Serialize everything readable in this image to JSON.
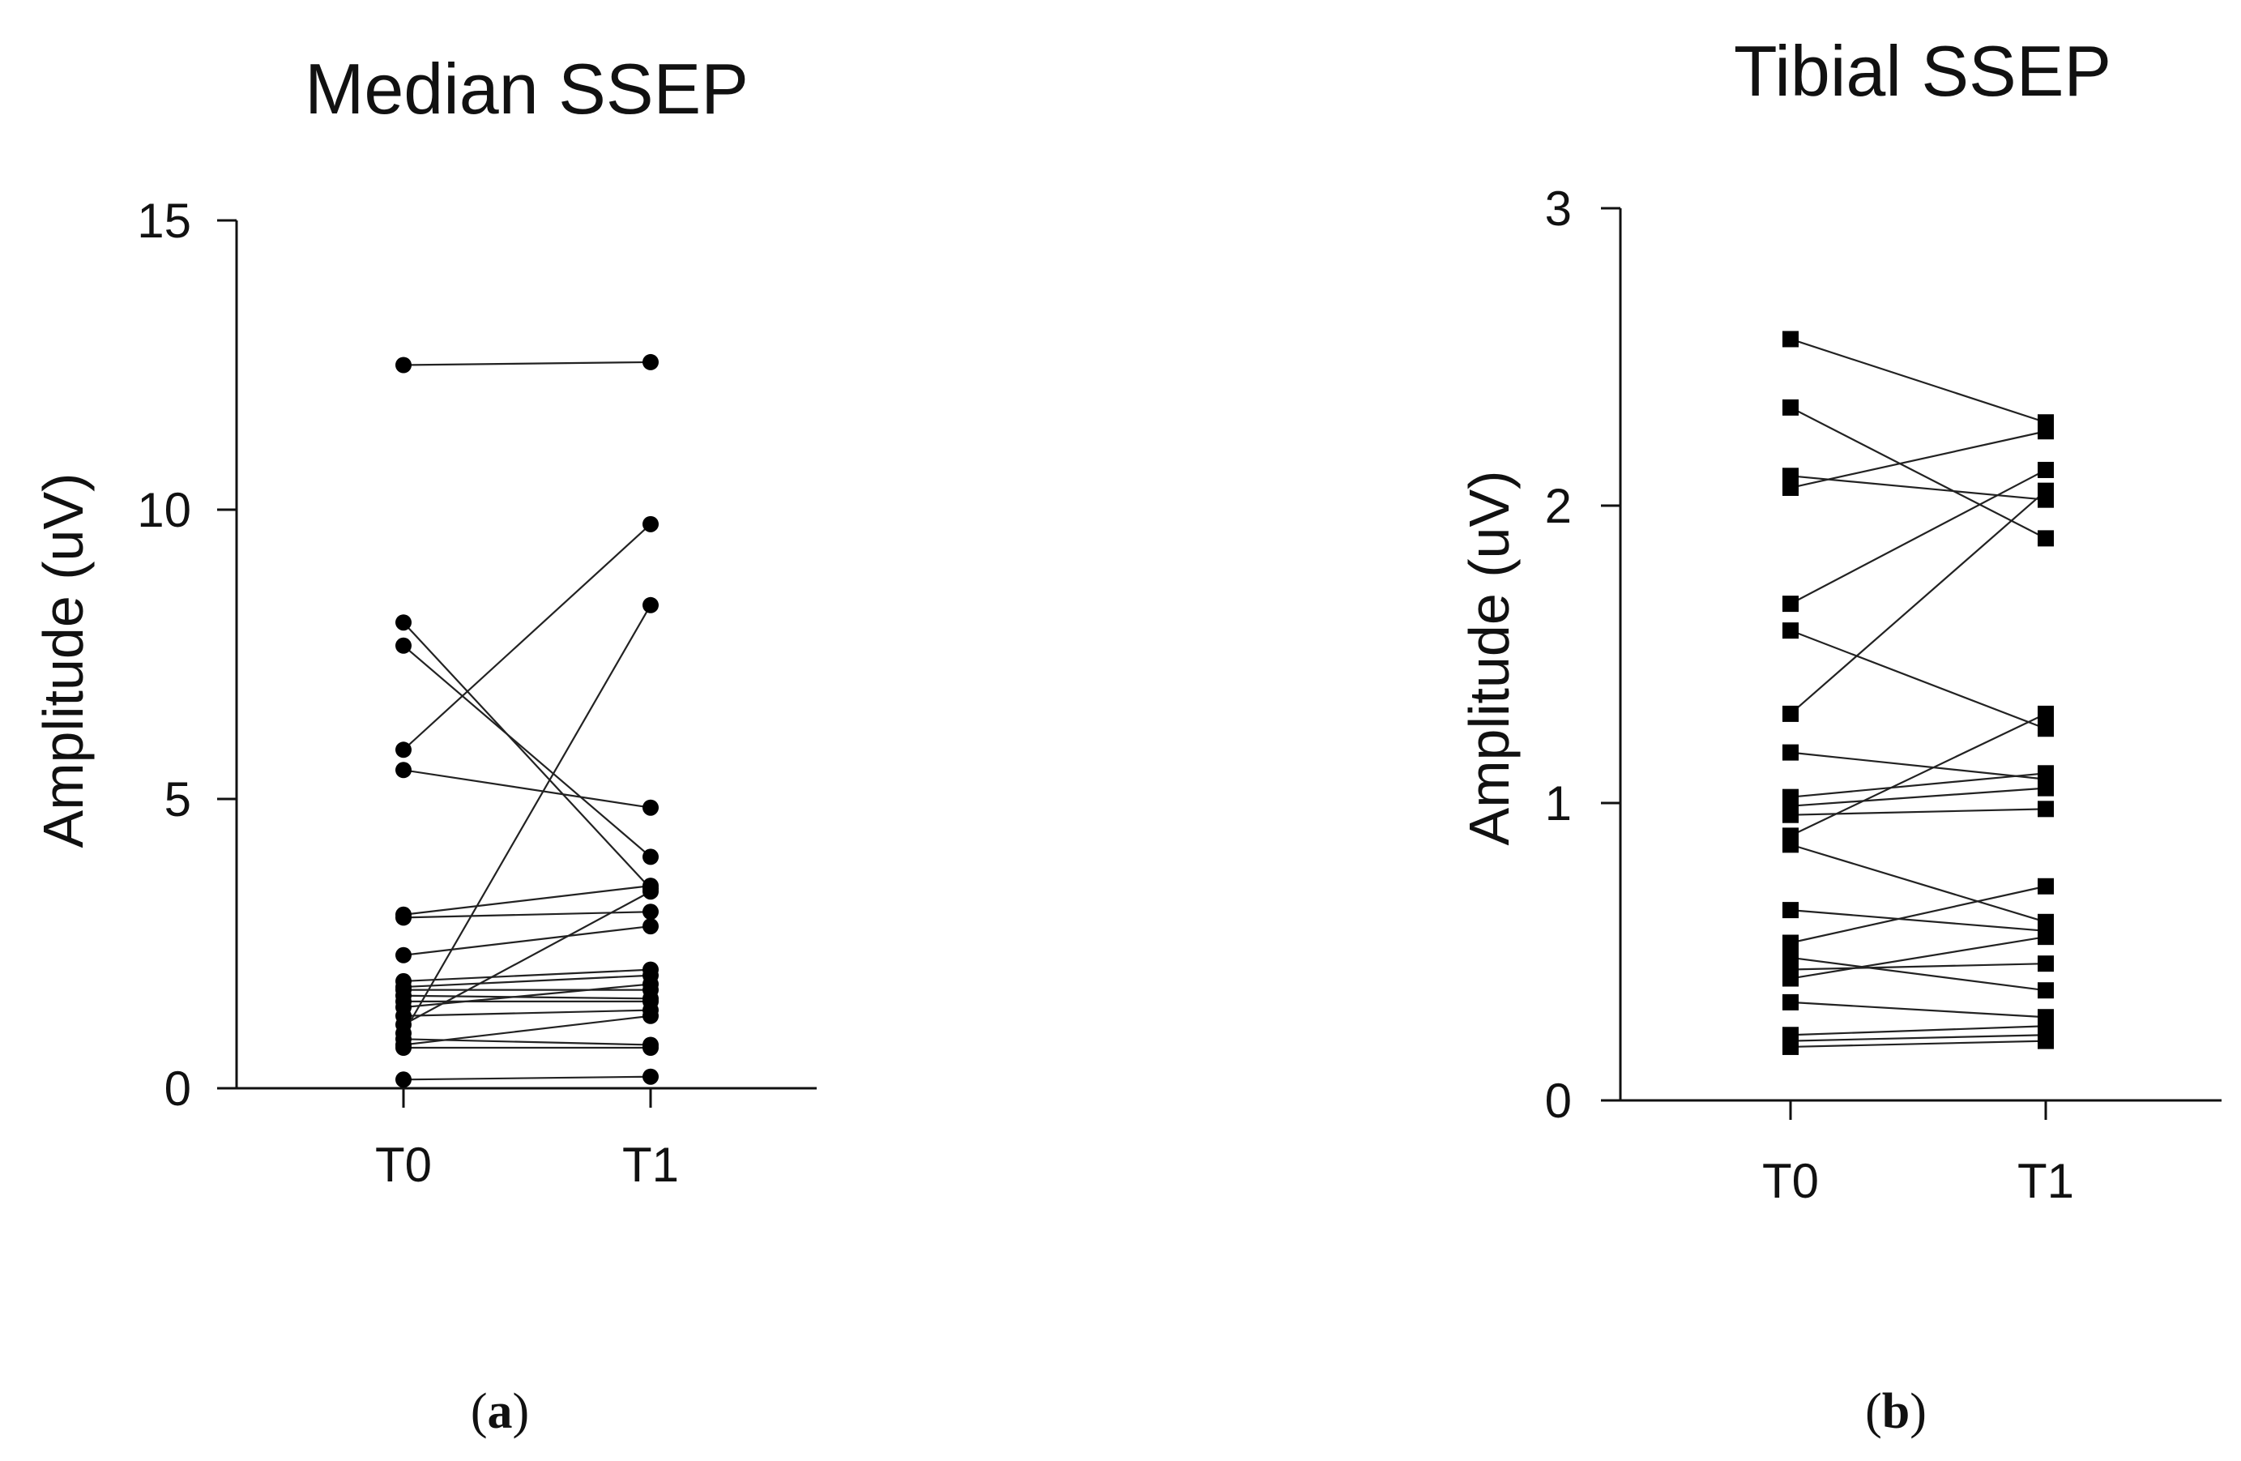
{
  "panel_labels": [
    "a",
    "b"
  ],
  "chart_data": [
    {
      "type": "scatter",
      "title": "Median SSEP",
      "ylabel": "Amplitude (uV)",
      "xlabel": "",
      "categories": [
        "T0",
        "T1"
      ],
      "ylim": [
        0,
        15
      ],
      "yticks": [
        0,
        5,
        10,
        15
      ],
      "marker": "circle",
      "grid": false,
      "pairs": [
        [
          12.5,
          12.55
        ],
        [
          8.05,
          3.45
        ],
        [
          7.65,
          4.0
        ],
        [
          5.85,
          9.75
        ],
        [
          5.5,
          4.85
        ],
        [
          3.0,
          3.5
        ],
        [
          2.95,
          3.05
        ],
        [
          2.3,
          2.8
        ],
        [
          1.85,
          2.05
        ],
        [
          1.75,
          1.95
        ],
        [
          1.7,
          1.7
        ],
        [
          1.6,
          1.55
        ],
        [
          1.5,
          1.5
        ],
        [
          1.4,
          1.8
        ],
        [
          1.25,
          1.35
        ],
        [
          1.1,
          3.4
        ],
        [
          0.95,
          8.35
        ],
        [
          0.85,
          0.75
        ],
        [
          0.75,
          1.25
        ],
        [
          0.7,
          0.7
        ],
        [
          0.15,
          0.2
        ]
      ]
    },
    {
      "type": "scatter",
      "title": "Tibial SSEP",
      "ylabel": "Amplitude (uV)",
      "xlabel": "",
      "categories": [
        "T0",
        "T1"
      ],
      "ylim": [
        0,
        3
      ],
      "yticks": [
        0,
        1,
        2,
        3
      ],
      "marker": "square",
      "grid": false,
      "pairs": [
        [
          2.56,
          2.28
        ],
        [
          2.33,
          1.89
        ],
        [
          2.1,
          2.02
        ],
        [
          2.06,
          2.25
        ],
        [
          1.67,
          2.12
        ],
        [
          1.58,
          1.25
        ],
        [
          1.3,
          2.05
        ],
        [
          1.17,
          1.08
        ],
        [
          1.02,
          1.1
        ],
        [
          0.99,
          1.05
        ],
        [
          0.96,
          0.98
        ],
        [
          0.89,
          1.3
        ],
        [
          0.86,
          0.6
        ],
        [
          0.64,
          0.57
        ],
        [
          0.53,
          0.72
        ],
        [
          0.48,
          0.37
        ],
        [
          0.44,
          0.46
        ],
        [
          0.41,
          0.55
        ],
        [
          0.33,
          0.28
        ],
        [
          0.22,
          0.25
        ],
        [
          0.2,
          0.22
        ],
        [
          0.18,
          0.2
        ]
      ]
    }
  ]
}
